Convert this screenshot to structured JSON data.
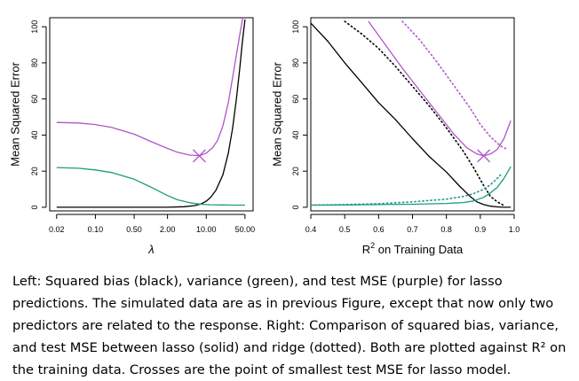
{
  "chart_data": [
    {
      "type": "line",
      "panel": "left",
      "xlabel": "λ",
      "ylabel": "Mean Squared Error",
      "x_scale": "log",
      "xlim": [
        0.015,
        70
      ],
      "ylim": [
        -2,
        105
      ],
      "x_ticks": [
        "0.02",
        "0.10",
        "0.50",
        "2.00",
        "10.00",
        "50.00"
      ],
      "y_ticks": [
        "0",
        "20",
        "40",
        "60",
        "80",
        "100"
      ],
      "series": [
        {
          "color": "#000000",
          "style": "solid",
          "x": [
            0.02,
            0.1,
            0.5,
            1,
            2,
            4,
            6,
            8,
            10,
            12,
            15,
            20,
            25,
            30,
            35,
            40,
            45,
            50
          ],
          "y": [
            0,
            0,
            0,
            0,
            0,
            0.3,
            0.9,
            1.8,
            3.4,
            5.5,
            9.5,
            18,
            30,
            44,
            60,
            76,
            92,
            104
          ]
        },
        {
          "color": "#1a9b80",
          "style": "solid",
          "x": [
            0.02,
            0.05,
            0.1,
            0.2,
            0.5,
            1,
            2,
            3,
            5,
            8,
            12,
            20,
            30,
            50
          ],
          "y": [
            22,
            21.6,
            20.7,
            19.2,
            15.5,
            11.2,
            6.5,
            4.2,
            2.5,
            1.7,
            1.4,
            1.3,
            1.2,
            1.2
          ]
        },
        {
          "color": "#b155c9",
          "style": "solid",
          "x": [
            0.02,
            0.05,
            0.1,
            0.2,
            0.5,
            1,
            2,
            3,
            5,
            7,
            8,
            10,
            13,
            16,
            20,
            25,
            30,
            40,
            50
          ],
          "y": [
            47,
            46.7,
            45.8,
            44.2,
            40.5,
            36.5,
            32.6,
            30.5,
            28.9,
            28.7,
            28.8,
            30,
            33,
            37,
            45,
            58,
            72,
            95,
            112
          ]
        }
      ],
      "markers": [
        {
          "symbol": "x",
          "color": "#b155c9",
          "x": 7.5,
          "y": 28.5
        }
      ]
    },
    {
      "type": "line",
      "panel": "right",
      "xlabel": "R^2 on Training Data",
      "ylabel": "Mean Squared Error",
      "xlim": [
        0.4,
        1.0
      ],
      "ylim": [
        -2,
        105
      ],
      "x_ticks": [
        "0.4",
        "0.5",
        "0.6",
        "0.7",
        "0.8",
        "0.9",
        "1.0"
      ],
      "y_ticks": [
        "0",
        "20",
        "40",
        "60",
        "80",
        "100"
      ],
      "series": [
        {
          "color": "#000000",
          "style": "solid",
          "x": [
            0.39,
            0.45,
            0.5,
            0.55,
            0.6,
            0.65,
            0.7,
            0.75,
            0.8,
            0.84,
            0.87,
            0.89,
            0.91,
            0.93,
            0.95,
            0.97,
            0.99
          ],
          "y": [
            104,
            92,
            80,
            69,
            58,
            48.5,
            38,
            28,
            19.5,
            11.5,
            6,
            3,
            1.5,
            0.6,
            0.2,
            0,
            0
          ]
        },
        {
          "color": "#000000",
          "style": "dotted",
          "x": [
            0.5,
            0.55,
            0.6,
            0.65,
            0.7,
            0.75,
            0.8,
            0.85,
            0.88,
            0.91,
            0.93,
            0.95,
            0.97
          ],
          "y": [
            103,
            96,
            88,
            78,
            67,
            56,
            44,
            31,
            22,
            12,
            6,
            3,
            1
          ]
        },
        {
          "color": "#1a9b80",
          "style": "solid",
          "x": [
            0.4,
            0.5,
            0.6,
            0.7,
            0.8,
            0.85,
            0.88,
            0.91,
            0.93,
            0.95,
            0.97,
            0.99
          ],
          "y": [
            1.2,
            1.3,
            1.5,
            1.7,
            2.1,
            2.6,
            3.5,
            5.5,
            8,
            11,
            16,
            22.5
          ]
        },
        {
          "color": "#1a9b80",
          "style": "dotted",
          "x": [
            0.4,
            0.5,
            0.6,
            0.7,
            0.8,
            0.85,
            0.88,
            0.91,
            0.93,
            0.95,
            0.96
          ],
          "y": [
            1.2,
            1.5,
            2,
            3,
            4.5,
            6,
            7.5,
            10,
            12.5,
            16,
            18
          ]
        },
        {
          "color": "#b155c9",
          "style": "solid",
          "x": [
            0.57,
            0.62,
            0.67,
            0.72,
            0.77,
            0.82,
            0.86,
            0.89,
            0.91,
            0.93,
            0.95,
            0.97,
            0.99
          ],
          "y": [
            103,
            90,
            77,
            65,
            53,
            41,
            33,
            29.5,
            28.5,
            29.5,
            32,
            38,
            48
          ]
        },
        {
          "color": "#b155c9",
          "style": "dotted",
          "x": [
            0.67,
            0.72,
            0.77,
            0.82,
            0.87,
            0.9,
            0.93,
            0.96,
            0.98
          ],
          "y": [
            103,
            93,
            81,
            68,
            55,
            46,
            39,
            34,
            32
          ]
        }
      ],
      "markers": [
        {
          "symbol": "x",
          "color": "#b155c9",
          "x": 0.91,
          "y": 28.5
        }
      ]
    }
  ],
  "caption": "Left: Squared bias (black), variance (green), and test MSE (purple) for lasso predictions. The simulated data are as in previous Figure, except that now only two predictors are related to the response. Right: Comparison of squared bias, variance, and test MSE between lasso (solid) and ridge (dotted). Both are plotted against R² on the training data. Crosses are the point of smallest test MSE for lasso model."
}
